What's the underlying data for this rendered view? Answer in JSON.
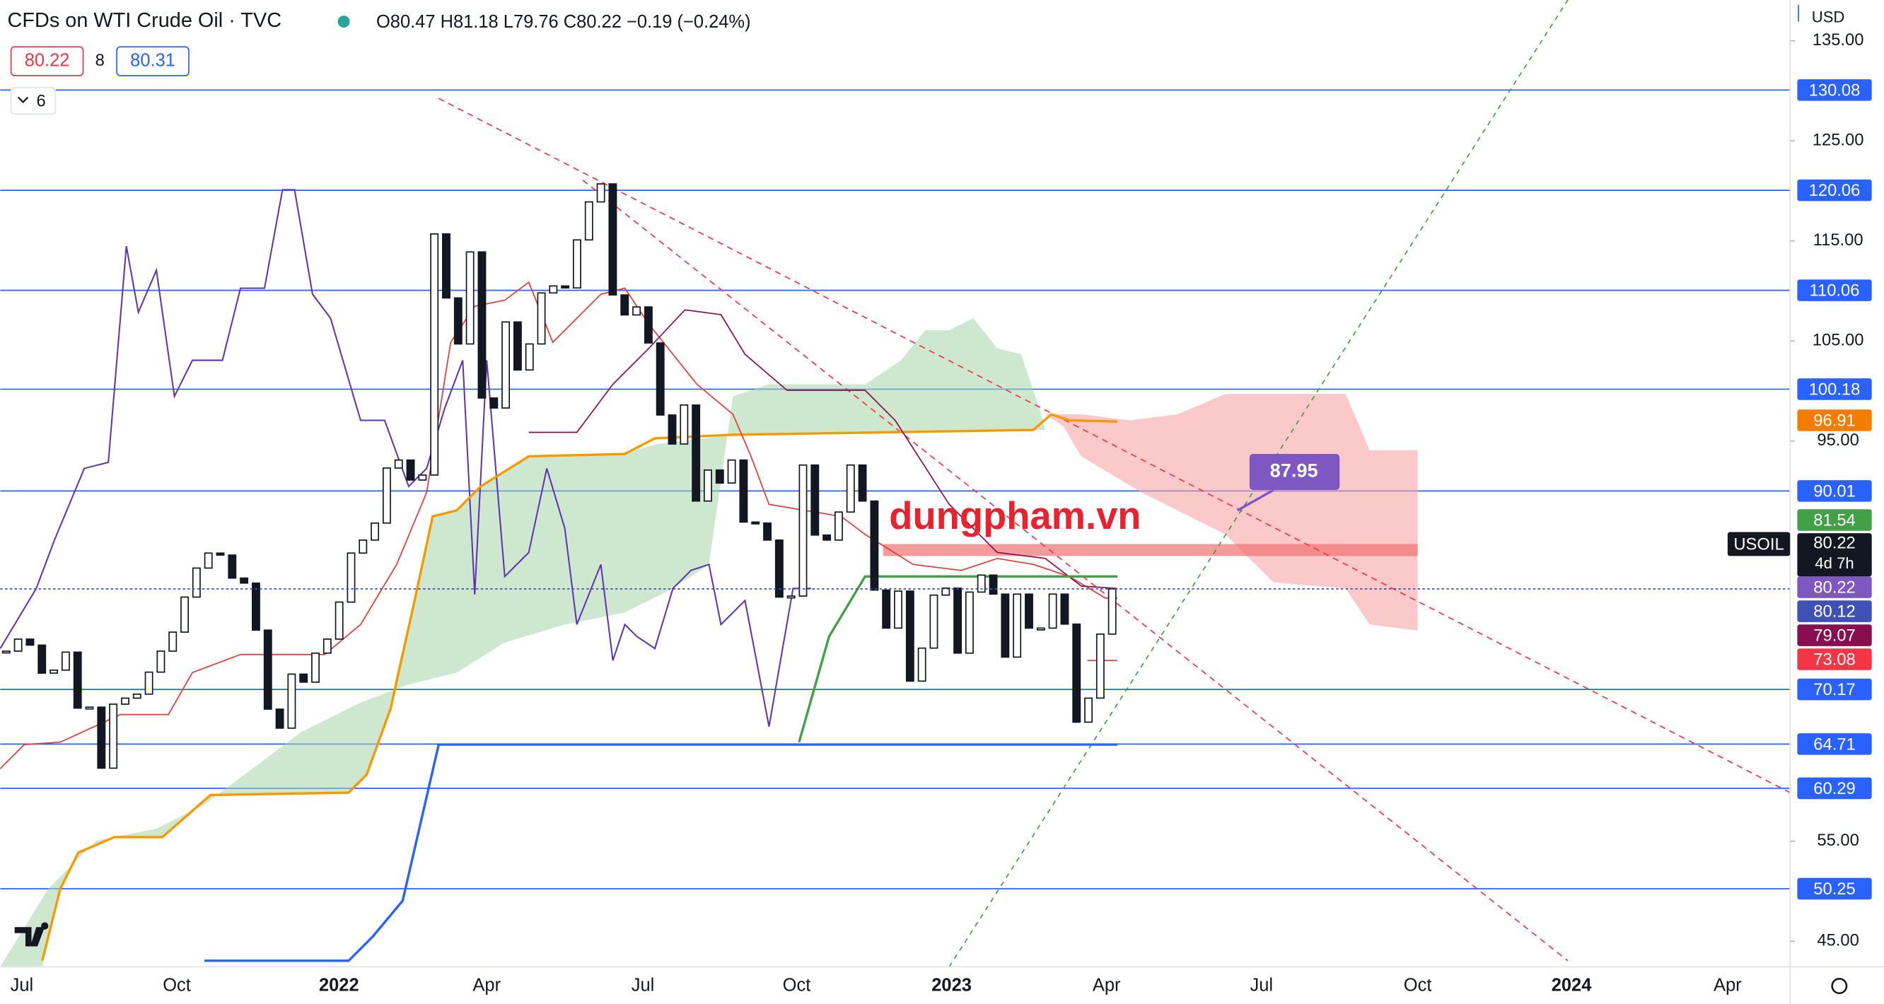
{
  "header": {
    "title": "CFDs on WTI Crude Oil · TVC",
    "ohlc": "O80.47 H81.18 L79.76 C80.22 −0.19 (−0.24%)",
    "sell": "80.22",
    "spread": "8",
    "buy": "80.31",
    "indicators": "6"
  },
  "watermark": "dungpham.vn",
  "callout": "87.95",
  "chart_data": {
    "type": "candlestick",
    "currency": "USD",
    "symbol": "USOIL",
    "countdown": "4d 7h",
    "close": [
      74.0,
      75.2,
      74.6,
      71.8,
      72.1,
      73.9,
      68.3,
      68.4,
      62.3,
      68.7,
      69.3,
      69.7,
      71.9,
      74.0,
      75.9,
      79.4,
      82.3,
      83.8,
      83.6,
      81.3,
      80.8,
      76.1,
      68.2,
      66.3,
      71.7,
      70.9,
      73.8,
      75.2,
      78.9,
      83.8,
      85.1,
      86.8,
      92.3,
      93.1,
      91.1,
      91.6,
      115.7,
      109.3,
      104.7,
      113.9,
      99.3,
      98.3,
      106.9,
      102.1,
      104.7,
      109.8,
      110.5,
      110.3,
      115.1,
      118.9,
      120.7,
      109.6,
      107.6,
      108.4,
      104.8,
      97.6,
      94.7,
      98.6,
      89.0,
      92.1,
      90.8,
      93.1,
      86.9,
      86.8,
      85.1,
      79.4,
      79.5,
      92.6,
      85.6,
      85.1,
      87.9,
      92.6,
      89.0,
      80.1,
      76.3,
      80.0,
      71.0,
      74.3,
      79.6,
      80.3,
      73.8,
      79.9,
      81.6,
      79.7,
      73.4,
      79.7,
      76.3,
      76.3,
      79.7,
      76.7,
      66.9,
      69.3,
      75.7,
      80.22
    ],
    "ylim": [
      42.45,
      139.08
    ],
    "yticks": [
      {
        "value": 135,
        "label": "135.00"
      },
      {
        "value": 125,
        "label": "125.00"
      },
      {
        "value": 115,
        "label": "115.00"
      },
      {
        "value": 105,
        "label": "105.00"
      },
      {
        "value": 95,
        "label": "95.00"
      },
      {
        "value": 55,
        "label": "55.00"
      },
      {
        "value": 45,
        "label": "45.00"
      }
    ],
    "levels": [
      130.08,
      120.06,
      110.06,
      100.18,
      90.01,
      70.17,
      64.71,
      60.29,
      50.25
    ],
    "markers": [
      {
        "value": 96.91,
        "color": "#f57c00"
      },
      {
        "value": 81.54,
        "color": "#43a047"
      },
      {
        "value": 80.22,
        "color": "#7e57c2"
      },
      {
        "value": 80.12,
        "color": "#3f51b5"
      },
      {
        "value": 79.07,
        "color": "#880e4f"
      },
      {
        "value": 73.08,
        "color": "#f23645"
      }
    ],
    "last": 80.22,
    "xlabels": [
      "Jul",
      "Oct",
      "2022",
      "Apr",
      "Jul",
      "Oct",
      "2023",
      "Apr",
      "Jul",
      "Oct",
      "2024",
      "Apr"
    ]
  }
}
